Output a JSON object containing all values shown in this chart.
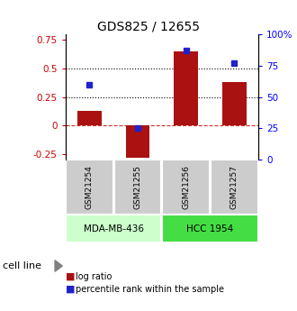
{
  "title": "GDS825 / 12655",
  "samples": [
    "GSM21254",
    "GSM21255",
    "GSM21256",
    "GSM21257"
  ],
  "log_ratios": [
    0.13,
    -0.28,
    0.65,
    0.38
  ],
  "percentile_ranks": [
    60,
    25,
    87,
    77
  ],
  "left_ylim": [
    -0.3,
    0.8
  ],
  "right_ylim": [
    0,
    100
  ],
  "left_yticks": [
    -0.25,
    0,
    0.25,
    0.5,
    0.75
  ],
  "right_yticks": [
    0,
    25,
    50,
    75,
    100
  ],
  "right_yticklabels": [
    "0",
    "25",
    "50",
    "75",
    "100%"
  ],
  "dotted_lines": [
    0.25,
    0.5
  ],
  "dashed_line": 0.0,
  "bar_color": "#AA1111",
  "dot_color": "#2222CC",
  "cell_lines": [
    {
      "label": "MDA-MB-436",
      "samples": [
        0,
        1
      ],
      "color": "#CCFFCC"
    },
    {
      "label": "HCC 1954",
      "samples": [
        2,
        3
      ],
      "color": "#44DD44"
    }
  ],
  "cell_line_label": "cell line",
  "legend_log_ratio": "log ratio",
  "legend_percentile": "percentile rank within the sample",
  "gsm_box_color": "#CCCCCC"
}
